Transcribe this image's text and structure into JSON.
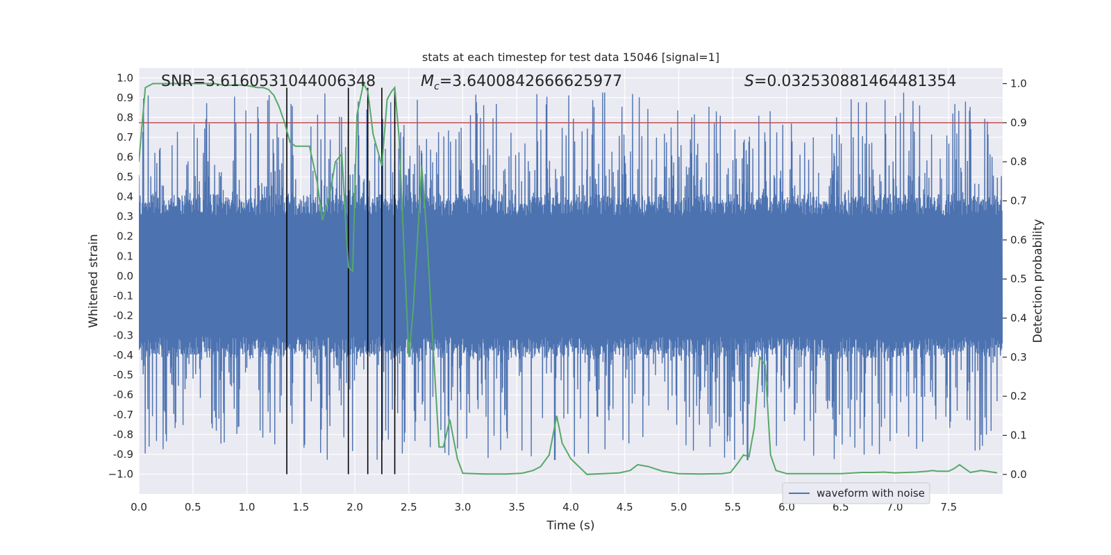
{
  "chart_data": {
    "type": "line",
    "title": "stats at each timestep for test data 15046 [signal=1]",
    "xlabel": "Time (s)",
    "ylabel": "Whitened strain",
    "y2label": "Detection probability",
    "xlim": [
      0.0,
      8.0
    ],
    "ylim": [
      -1.1,
      1.05
    ],
    "y2lim": [
      -0.05,
      1.04
    ],
    "x_ticks": [
      0.0,
      0.5,
      1.0,
      1.5,
      2.0,
      2.5,
      3.0,
      3.5,
      4.0,
      4.5,
      5.0,
      5.5,
      6.0,
      6.5,
      7.0,
      7.5
    ],
    "x_tick_labels": [
      "0.0",
      "0.5",
      "1.0",
      "1.5",
      "2.0",
      "2.5",
      "3.0",
      "3.5",
      "4.0",
      "4.5",
      "5.0",
      "5.5",
      "6.0",
      "6.5",
      "7.0",
      "7.5"
    ],
    "y_ticks": [
      1.0,
      0.9,
      0.8,
      0.7,
      0.6,
      0.5,
      0.4,
      0.3,
      0.2,
      0.1,
      0.0,
      -0.1,
      -0.2,
      -0.3,
      -0.4,
      -0.5,
      -0.6,
      -0.7,
      -0.8,
      -0.9,
      -1.0
    ],
    "y_tick_labels": [
      "1.0",
      "0.9",
      "0.8",
      "0.7",
      "0.6",
      "0.5",
      "0.4",
      "0.3",
      "0.2",
      "0.1",
      "0.0",
      "-0.1",
      "-0.2",
      "-0.3",
      "-0.4",
      "-0.5",
      "-0.6",
      "-0.7",
      "-0.8",
      "-0.9",
      "−1.0"
    ],
    "y2_ticks": [
      1.0,
      0.9,
      0.8,
      0.7,
      0.6,
      0.5,
      0.4,
      0.3,
      0.2,
      0.1,
      0.0
    ],
    "y2_tick_labels": [
      "1.0",
      "0.9",
      "0.8",
      "0.7",
      "0.6",
      "0.5",
      "0.4",
      "0.3",
      "0.2",
      "0.1",
      "0.0"
    ],
    "annotations": {
      "snr": "SNR=3.6160531044006348",
      "mc_symbol": "M",
      "mc_sub": "c",
      "mc_value": "=3.6400842666625977",
      "s_symbol": "S",
      "s_value": "=0.032530881464481354"
    },
    "legend": {
      "label": "waveform with noise",
      "position": "lower-right"
    },
    "threshold": {
      "y2": 0.9,
      "color": "#c44e52"
    },
    "trigger_lines": {
      "x": [
        1.37,
        1.94,
        2.12,
        2.25,
        2.37
      ],
      "y_top": 0.95,
      "y_bottom": -1.0,
      "color": "#000000"
    },
    "series": [
      {
        "name": "waveform with noise",
        "axis": "left",
        "color": "#4c72b0",
        "kind": "noise",
        "core_amplitude": 0.36,
        "max_amplitude": 0.93
      },
      {
        "name": "detection probability",
        "axis": "right",
        "color": "#55a868",
        "x": [
          0.0,
          0.06,
          0.13,
          0.2,
          0.3,
          0.4,
          0.5,
          0.6,
          0.7,
          0.8,
          0.9,
          1.0,
          1.1,
          1.15,
          1.2,
          1.25,
          1.3,
          1.35,
          1.4,
          1.45,
          1.5,
          1.58,
          1.65,
          1.7,
          1.77,
          1.82,
          1.88,
          1.92,
          1.94,
          1.98,
          2.02,
          2.08,
          2.12,
          2.17,
          2.22,
          2.25,
          2.3,
          2.34,
          2.37,
          2.41,
          2.46,
          2.5,
          2.54,
          2.58,
          2.62,
          2.67,
          2.72,
          2.78,
          2.82,
          2.88,
          2.95,
          3.0,
          3.2,
          3.4,
          3.55,
          3.65,
          3.72,
          3.8,
          3.87,
          3.92,
          4.0,
          4.15,
          4.3,
          4.45,
          4.55,
          4.62,
          4.72,
          4.85,
          5.0,
          5.2,
          5.4,
          5.48,
          5.55,
          5.6,
          5.65,
          5.7,
          5.75,
          5.8,
          5.85,
          5.9,
          6.0,
          6.2,
          6.5,
          6.7,
          6.8,
          6.9,
          7.0,
          7.2,
          7.3,
          7.35,
          7.4,
          7.5,
          7.55,
          7.6,
          7.65,
          7.7,
          7.8,
          7.85,
          7.95
        ],
        "y": [
          0.8,
          0.99,
          1.0,
          1.0,
          1.0,
          1.0,
          1.0,
          1.0,
          1.0,
          0.995,
          0.997,
          0.995,
          0.99,
          0.99,
          0.985,
          0.97,
          0.94,
          0.9,
          0.85,
          0.84,
          0.84,
          0.84,
          0.75,
          0.65,
          0.72,
          0.8,
          0.82,
          0.62,
          0.53,
          0.52,
          0.92,
          1.0,
          0.98,
          0.87,
          0.82,
          0.79,
          0.96,
          0.98,
          0.99,
          0.86,
          0.55,
          0.3,
          0.42,
          0.6,
          0.79,
          0.6,
          0.35,
          0.07,
          0.07,
          0.14,
          0.04,
          0.003,
          0.001,
          0.001,
          0.003,
          0.01,
          0.02,
          0.05,
          0.15,
          0.08,
          0.04,
          0.0,
          0.002,
          0.004,
          0.01,
          0.025,
          0.02,
          0.008,
          0.002,
          0.001,
          0.002,
          0.005,
          0.03,
          0.05,
          0.045,
          0.12,
          0.3,
          0.28,
          0.05,
          0.01,
          0.002,
          0.002,
          0.002,
          0.005,
          0.005,
          0.006,
          0.004,
          0.006,
          0.008,
          0.01,
          0.008,
          0.008,
          0.015,
          0.025,
          0.015,
          0.005,
          0.01,
          0.008,
          0.004
        ]
      }
    ]
  }
}
